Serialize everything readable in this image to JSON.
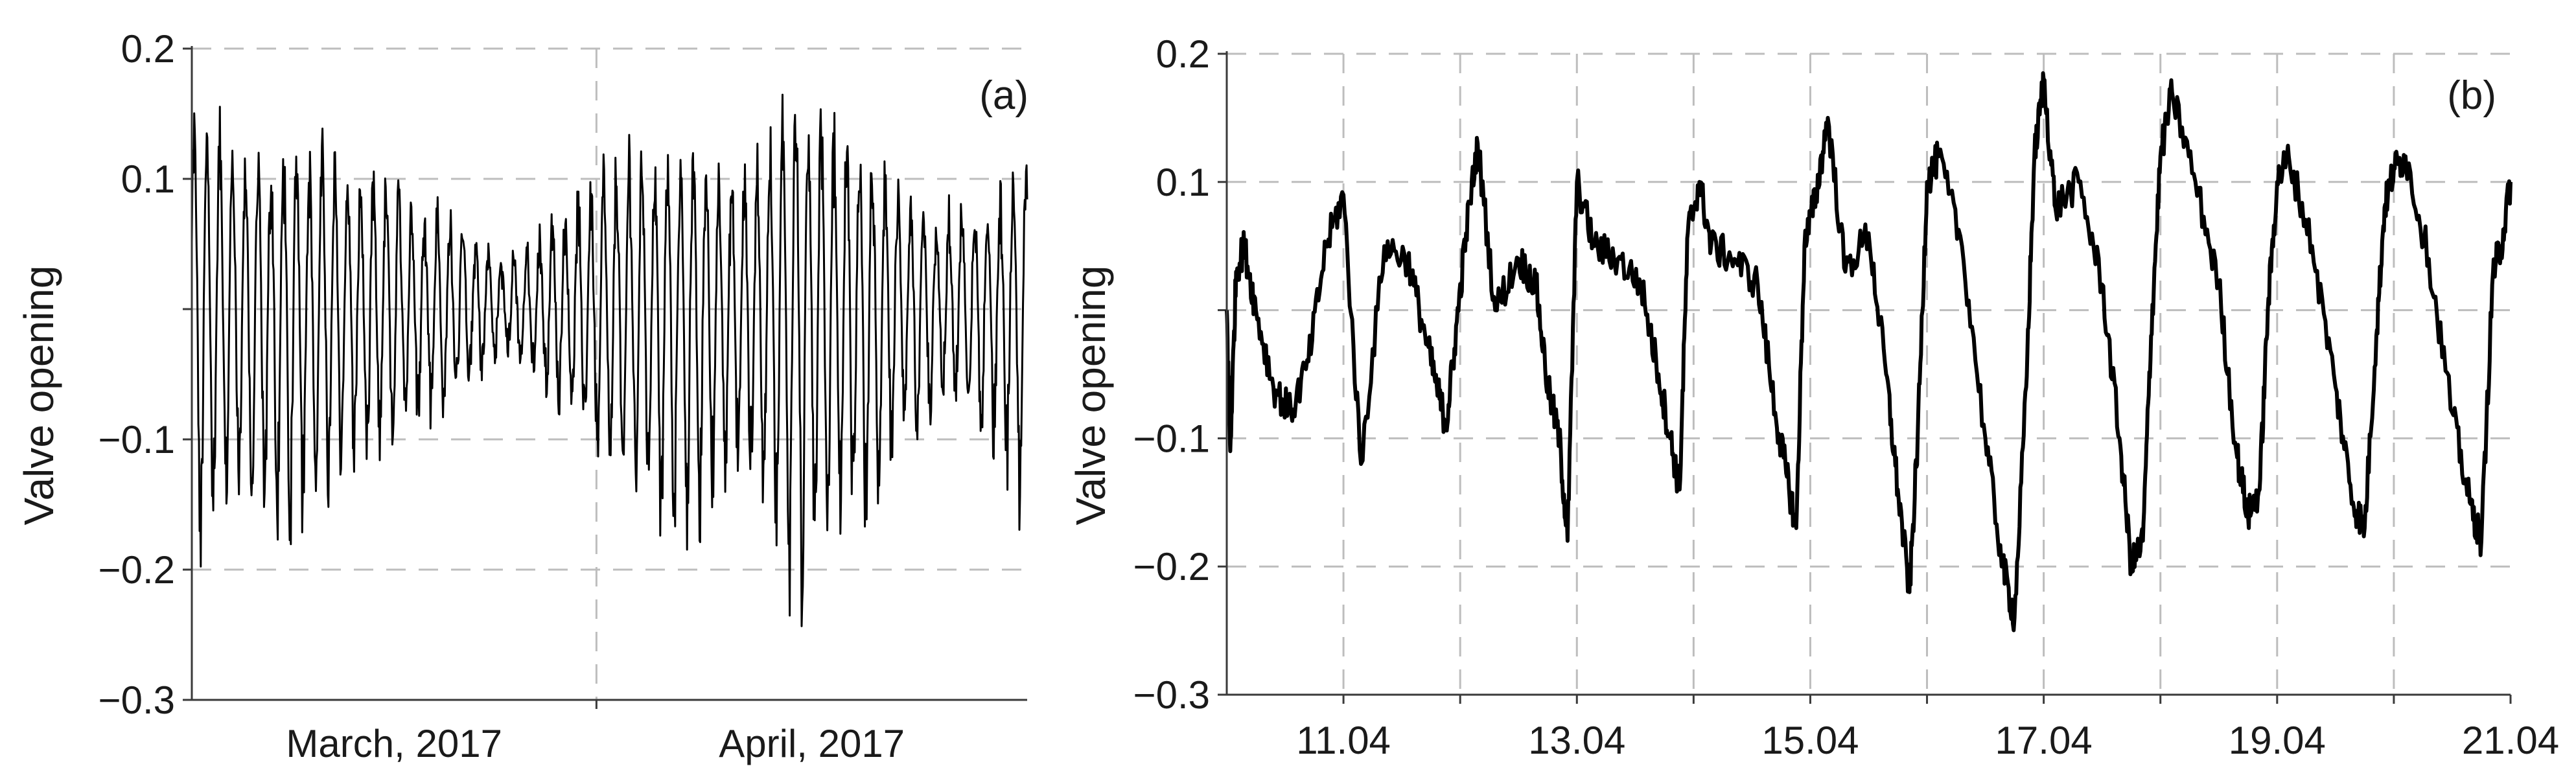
{
  "colors": {
    "line": "#000000",
    "grid": "#bdbdbd",
    "axis": "#3a3a3a",
    "text": "#1a1a1a",
    "background": "#ffffff"
  },
  "chart_data": [
    {
      "type": "line",
      "panel_label": "(a)",
      "ylabel": "Valve opening",
      "ylim": [
        -0.3,
        0.2
      ],
      "y_ticks": [
        "0.2",
        "0.1",
        "",
        "-0.1",
        "-0.2",
        "-0.3"
      ],
      "y_tick_values": [
        0.2,
        0.1,
        0,
        -0.1,
        -0.2,
        -0.3
      ],
      "x_categories": [
        "March, 2017",
        "April, 2017"
      ],
      "grid": "dashed, both axes",
      "x_range_days": [
        0,
        64
      ],
      "description": "approx. 64 days of valve opening readings, daily oscillation",
      "series": [
        {
          "x_day": [
            0,
            2,
            4,
            6,
            8,
            10,
            12,
            14,
            16,
            18,
            20,
            22,
            24,
            26,
            28,
            30,
            32,
            34,
            36,
            38,
            40,
            42,
            44,
            46,
            48,
            50,
            52,
            54,
            56,
            58,
            60,
            62,
            64
          ],
          "daily_peak": [
            0.16,
            0.15,
            0.13,
            0.12,
            0.14,
            0.13,
            0.11,
            0.11,
            0.1,
            0.09,
            0.08,
            0.06,
            0.04,
            0.05,
            0.08,
            0.1,
            0.12,
            0.14,
            0.12,
            0.13,
            0.12,
            0.1,
            0.14,
            0.18,
            0.17,
            0.15,
            0.13,
            0.1,
            0.08,
            0.08,
            0.08,
            0.09,
            0.12
          ],
          "daily_trough": [
            -0.21,
            -0.18,
            -0.16,
            -0.19,
            -0.19,
            -0.15,
            -0.13,
            -0.12,
            -0.1,
            -0.09,
            -0.08,
            -0.06,
            -0.03,
            -0.05,
            -0.08,
            -0.1,
            -0.12,
            -0.13,
            -0.19,
            -0.2,
            -0.16,
            -0.13,
            -0.17,
            -0.24,
            -0.22,
            -0.18,
            -0.18,
            -0.12,
            -0.09,
            -0.07,
            -0.09,
            -0.12,
            -0.17
          ]
        }
      ]
    },
    {
      "type": "line",
      "panel_label": "(b)",
      "ylabel": "Valve opening",
      "ylim": [
        -0.3,
        0.2
      ],
      "y_ticks": [
        "0.2",
        "0.1",
        "",
        "-0.1",
        "-0.2",
        "-0.3"
      ],
      "y_tick_values": [
        0.2,
        0.1,
        0,
        -0.1,
        -0.2,
        -0.3
      ],
      "x_range": [
        "10.04",
        "21.04"
      ],
      "x_ticks": [
        "11.04",
        "13.04",
        "15.04",
        "17.04",
        "19.04",
        "21.04"
      ],
      "x_tick_days": [
        11,
        13,
        15,
        17,
        19,
        21
      ],
      "grid": "dashed, both axes",
      "series": [
        {
          "x_day": [
            10.0,
            10.03,
            10.08,
            10.15,
            10.25,
            10.4,
            10.55,
            10.7,
            10.85,
            11.0,
            11.15,
            11.35,
            11.55,
            11.7,
            11.8,
            11.88,
            11.95,
            12.05,
            12.15,
            12.3,
            12.5,
            12.65,
            12.75,
            12.85,
            12.92,
            13.0,
            13.15,
            13.35,
            13.55,
            13.7,
            13.8,
            13.88,
            13.95,
            14.05,
            14.15,
            14.35,
            14.55,
            14.7,
            14.8,
            14.88,
            14.95,
            15.05,
            15.15,
            15.3,
            15.5,
            15.65,
            15.75,
            15.85,
            15.92,
            16.0,
            16.1,
            16.3,
            16.5,
            16.65,
            16.75,
            16.85,
            16.92,
            17.0,
            17.1,
            17.3,
            17.5,
            17.65,
            17.75,
            17.85,
            17.92,
            18.0,
            18.1,
            18.3,
            18.5,
            18.65,
            18.75,
            18.85,
            18.92,
            19.0,
            19.1,
            19.3,
            19.5,
            19.65,
            19.75,
            19.85,
            19.92,
            20.0,
            20.1,
            20.3,
            20.5,
            20.65,
            20.75,
            20.85,
            20.92,
            21.0
          ],
          "y": [
            0.0,
            -0.11,
            0.03,
            0.05,
            0.0,
            -0.06,
            -0.08,
            -0.04,
            0.05,
            0.09,
            -0.12,
            0.05,
            0.04,
            -0.02,
            -0.06,
            -0.09,
            -0.03,
            0.06,
            0.13,
            0.0,
            0.04,
            0.02,
            -0.06,
            -0.1,
            -0.18,
            0.1,
            0.05,
            0.04,
            0.02,
            -0.05,
            -0.1,
            -0.14,
            0.06,
            0.1,
            0.05,
            0.04,
            0.02,
            -0.08,
            -0.13,
            -0.17,
            0.05,
            0.09,
            0.15,
            0.03,
            0.06,
            -0.05,
            -0.14,
            -0.22,
            -0.1,
            0.1,
            0.12,
            0.05,
            -0.1,
            -0.2,
            -0.24,
            -0.06,
            0.12,
            0.18,
            0.08,
            0.1,
            0.02,
            -0.1,
            -0.2,
            -0.18,
            -0.02,
            0.12,
            0.17,
            0.1,
            0.02,
            -0.11,
            -0.16,
            -0.14,
            0.0,
            0.1,
            0.12,
            0.05,
            -0.06,
            -0.15,
            -0.17,
            -0.02,
            0.08,
            0.11,
            0.12,
            0.04,
            -0.08,
            -0.15,
            -0.18,
            0.03,
            0.05,
            0.1
          ]
        }
      ]
    }
  ]
}
